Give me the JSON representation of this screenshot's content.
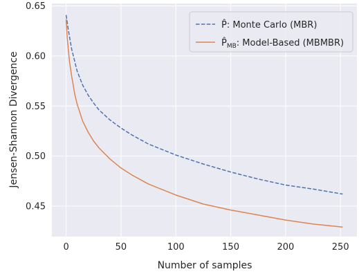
{
  "chart_data": {
    "type": "line",
    "xlabel": "Number of samples",
    "ylabel": "Jensen-Shannon Divergence",
    "xlim": [
      -13,
      265
    ],
    "ylim": [
      0.4195,
      0.6525
    ],
    "xticks": [
      0,
      50,
      100,
      150,
      200,
      250
    ],
    "yticks": [
      0.45,
      0.5,
      0.55,
      0.6,
      0.65
    ],
    "ytick_labels": [
      "0.45",
      "0.50",
      "0.55",
      "0.60",
      "0.65"
    ],
    "grid": true,
    "legend_position": "top-right",
    "series": [
      {
        "name": "P̂: Monte Carlo (MBR)",
        "legend_main": "P̂",
        "legend_rest": ": Monte Carlo (MBR)",
        "color": "#4c72b0",
        "style": "dashed",
        "x": [
          0,
          2,
          5,
          10,
          15,
          20,
          25,
          30,
          40,
          50,
          60,
          75,
          100,
          125,
          150,
          175,
          200,
          225,
          252
        ],
        "y": [
          0.641,
          0.626,
          0.607,
          0.585,
          0.571,
          0.561,
          0.553,
          0.546,
          0.536,
          0.528,
          0.521,
          0.512,
          0.501,
          0.492,
          0.484,
          0.477,
          0.471,
          0.467,
          0.462
        ]
      },
      {
        "name": "P̂MB: Model-Based (MBMBR)",
        "legend_main": "P̂",
        "legend_sub": "MB",
        "legend_rest": ": Model-Based (MBMBR)",
        "color": "#dd8452",
        "style": "solid",
        "x": [
          0,
          1,
          3,
          5,
          8,
          10,
          15,
          20,
          25,
          30,
          40,
          50,
          60,
          75,
          100,
          125,
          150,
          175,
          200,
          225,
          252
        ],
        "y": [
          0.637,
          0.618,
          0.595,
          0.58,
          0.561,
          0.552,
          0.535,
          0.524,
          0.515,
          0.508,
          0.497,
          0.488,
          0.481,
          0.472,
          0.461,
          0.452,
          0.446,
          0.441,
          0.436,
          0.432,
          0.429
        ]
      }
    ]
  }
}
